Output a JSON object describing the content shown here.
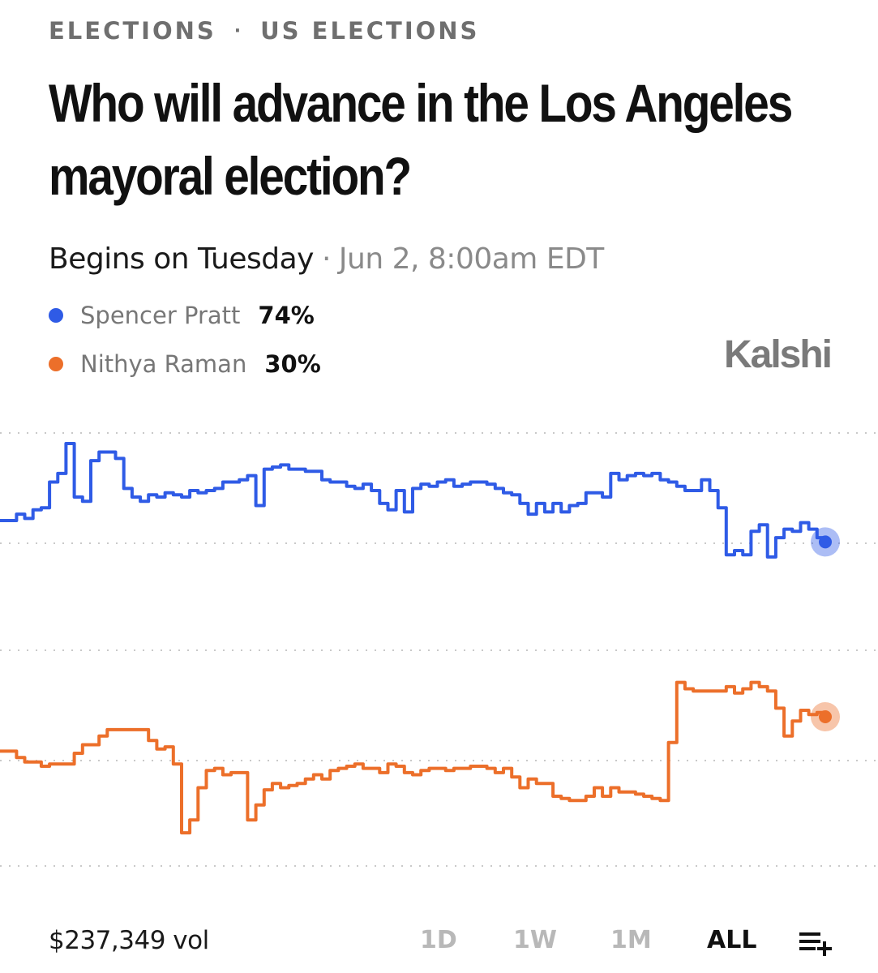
{
  "breadcrumb": {
    "section": "ELECTIONS",
    "separator": "·",
    "subsection": "US ELECTIONS"
  },
  "title": "Who will advance in the Los Angeles mayoral election?",
  "schedule": {
    "label": "Begins on Tuesday",
    "separator": "·",
    "date": "Jun 2, 8:00am EDT"
  },
  "legend": [
    {
      "name": "Spencer Pratt",
      "value": "74%",
      "color": "#2f5be6",
      "icon": "blue-dot"
    },
    {
      "name": "Nithya Raman",
      "value": "30%",
      "color": "#ec6f2a",
      "icon": "orange-dot"
    }
  ],
  "brand": "Kalshi",
  "chart_data": {
    "type": "line",
    "grid": true,
    "x": [
      0,
      2,
      3,
      4,
      5,
      6,
      7,
      8,
      9,
      10,
      11,
      12,
      13,
      14,
      15,
      16,
      17,
      18,
      19,
      20,
      21,
      22,
      23,
      24,
      25,
      26,
      27,
      28,
      29,
      30,
      31,
      32,
      33,
      34,
      35,
      36,
      37,
      38,
      39,
      40,
      41,
      42,
      43,
      44,
      45,
      46,
      47,
      48,
      49,
      50,
      51,
      52,
      53,
      54,
      55,
      56,
      57,
      58,
      59,
      60,
      61,
      62,
      63,
      64,
      65,
      66,
      67,
      68,
      69,
      70,
      71,
      72,
      73,
      74,
      75,
      76,
      77,
      78,
      79,
      80,
      81,
      82,
      83,
      84,
      85,
      86,
      87,
      88,
      89,
      90,
      91,
      92,
      93,
      94,
      95,
      96,
      97,
      98,
      99,
      100
    ],
    "series": [
      {
        "name": "Spencer Pratt",
        "color": "#2f5be6",
        "values": [
          75,
          75.3,
          75.1,
          75.5,
          75.6,
          76.8,
          77.2,
          78.6,
          76.1,
          75.9,
          77.8,
          78.2,
          78.2,
          77.9,
          76.5,
          76.1,
          75.9,
          76.2,
          76.1,
          76.3,
          76.2,
          76.1,
          76.4,
          76.3,
          76.4,
          76.5,
          76.8,
          76.8,
          76.9,
          77.1,
          75.7,
          77.4,
          77.5,
          77.6,
          77.4,
          77.4,
          77.3,
          77.3,
          76.9,
          76.8,
          76.8,
          76.6,
          76.5,
          76.7,
          76.4,
          75.8,
          75.5,
          76.4,
          75.4,
          76.5,
          76.7,
          76.6,
          76.8,
          76.9,
          76.6,
          76.7,
          76.8,
          76.8,
          76.7,
          76.5,
          76.3,
          76.2,
          75.8,
          75.3,
          75.8,
          75.4,
          75.8,
          75.4,
          75.7,
          75.8,
          76.3,
          76.3,
          76.1,
          77.2,
          76.9,
          77.1,
          77.2,
          77.1,
          77.2,
          76.9,
          76.8,
          76.6,
          76.4,
          76.4,
          76.9,
          76.4,
          75.6,
          73.4,
          73.6,
          73.4,
          74.5,
          74.8,
          73.3,
          74.2,
          74.6,
          74.5,
          74.9,
          74.6,
          74.2,
          74
        ],
        "current": "74%"
      },
      {
        "name": "Nithya Raman",
        "color": "#ec6f2a",
        "values": [
          28.4,
          28.1,
          27.9,
          27.9,
          27.7,
          27.8,
          27.8,
          27.8,
          28.3,
          28.7,
          28.7,
          29.1,
          29.4,
          29.4,
          29.4,
          29.4,
          29.4,
          28.9,
          28.5,
          28.6,
          27.8,
          24.6,
          25.2,
          26.7,
          27.5,
          27.6,
          27.3,
          27.4,
          27.4,
          25.2,
          25.9,
          26.6,
          26.9,
          26.7,
          26.8,
          26.9,
          27.1,
          27.3,
          27.1,
          27.5,
          27.6,
          27.7,
          27.8,
          27.6,
          27.6,
          27.4,
          27.8,
          27.7,
          27.4,
          27.3,
          27.5,
          27.6,
          27.6,
          27.5,
          27.6,
          27.6,
          27.7,
          27.7,
          27.6,
          27.4,
          27.6,
          27.2,
          26.7,
          27.1,
          26.9,
          26.9,
          26.3,
          26.2,
          26.1,
          26.1,
          26.3,
          26.7,
          26.3,
          26.7,
          26.5,
          26.5,
          26.4,
          26.3,
          26.2,
          26.1,
          28.8,
          31.6,
          31.3,
          31.2,
          31.2,
          31.2,
          31.2,
          31.4,
          31.1,
          31.3,
          31.6,
          31.4,
          31.2,
          30.4,
          29.1,
          29.8,
          30.3,
          30.1,
          30.2,
          30
        ],
        "current": "30%"
      }
    ]
  },
  "footer": {
    "volume": "$237,349 vol",
    "ranges": [
      {
        "label": "1D",
        "active": false
      },
      {
        "label": "1W",
        "active": false
      },
      {
        "label": "1M",
        "active": false
      },
      {
        "label": "ALL",
        "active": true
      }
    ]
  }
}
